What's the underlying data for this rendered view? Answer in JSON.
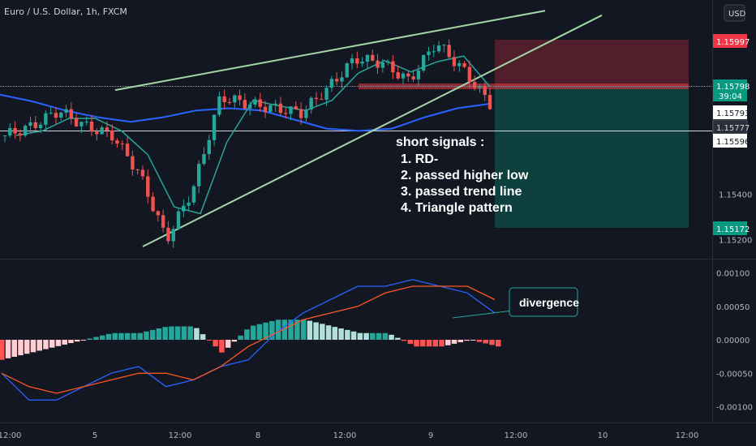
{
  "header": {
    "symbol": "Euro / U.S. Dollar, 1h, FXCM",
    "currency_button": "USD"
  },
  "annotations": {
    "signals_title": "short signals :",
    "signals": [
      "1. RD-",
      "2. passed higher low",
      "3. passed trend line",
      "4. Triangle pattern"
    ],
    "divergence_label": "divergence"
  },
  "price_tags": [
    {
      "text": "1.15997",
      "bg": "#f23645",
      "fg": "#ffffff"
    },
    {
      "text": "1.15798",
      "bg": "#089981",
      "fg": "#ffffff"
    },
    {
      "text": "39:04",
      "bg": "#089981",
      "fg": "#ffffff"
    },
    {
      "text": "1.15793",
      "bg": "#ffffff",
      "fg": "#131722"
    },
    {
      "text": "1.15777",
      "bg": "#2a2e39",
      "fg": "#d1d4dc"
    },
    {
      "text": "1.15596",
      "bg": "#ffffff",
      "fg": "#131722"
    },
    {
      "text": "1.15172",
      "bg": "#089981",
      "fg": "#ffffff"
    }
  ],
  "colors": {
    "background": "#131722",
    "up": "#26a69a",
    "down": "#ef5350",
    "trendline": "#a5d6a7",
    "ma_blue": "#2962ff",
    "ma_teal": "#26a69a",
    "macd": "#2962ff",
    "signal": "#ff5722",
    "hist_up_strong": "#26a69a",
    "hist_up_weak": "#b2dfdb",
    "hist_down_strong": "#ff5252",
    "hist_down_weak": "#ffcdd2",
    "stop_zone": "#f23645",
    "target_zone": "#089981"
  },
  "chart_data": [
    {
      "type": "candlestick",
      "title": "Euro / U.S. Dollar, 1h, FXCM",
      "ylim": [
        1.1512,
        1.1615
      ],
      "y_ticks": [
        "1.15400",
        "1.15200"
      ],
      "x_ticks": [
        "12:00",
        "5",
        "12:00",
        "8",
        "12:00",
        "9",
        "12:00",
        "10",
        "12:00"
      ],
      "ohlc_sampled": [
        [
          1.1574,
          1.1576,
          1.1564,
          1.1566
        ],
        [
          1.1566,
          1.1573,
          1.1561,
          1.157
        ],
        [
          1.157,
          1.158,
          1.1568,
          1.1577
        ],
        [
          1.1577,
          1.1579,
          1.1568,
          1.157
        ],
        [
          1.157,
          1.1574,
          1.1563,
          1.1566
        ],
        [
          1.1566,
          1.157,
          1.1547,
          1.1549
        ],
        [
          1.1549,
          1.1552,
          1.1518,
          1.152
        ],
        [
          1.152,
          1.1546,
          1.1517,
          1.1543
        ],
        [
          1.1543,
          1.1586,
          1.154,
          1.1583
        ],
        [
          1.1583,
          1.1588,
          1.1575,
          1.158
        ],
        [
          1.158,
          1.1586,
          1.1576,
          1.1578
        ],
        [
          1.1578,
          1.1583,
          1.1573,
          1.1576
        ],
        [
          1.1576,
          1.159,
          1.1572,
          1.1587
        ],
        [
          1.1587,
          1.1604,
          1.1585,
          1.16
        ],
        [
          1.16,
          1.1603,
          1.1594,
          1.1598
        ],
        [
          1.1598,
          1.16,
          1.1588,
          1.159
        ],
        [
          1.159,
          1.1611,
          1.1588,
          1.1607
        ],
        [
          1.1607,
          1.1609,
          1.1592,
          1.1595
        ],
        [
          1.1595,
          1.1597,
          1.158,
          1.158
        ]
      ],
      "ma_blue": [
        1.1584,
        1.1581,
        1.1577,
        1.1574,
        1.1572,
        1.1574,
        1.1577,
        1.1578,
        1.1577,
        1.1573,
        1.1569,
        1.1568,
        1.1569,
        1.1574,
        1.1578,
        1.158
      ],
      "trendlines": [
        {
          "name": "upper channel",
          "from": [
            1.1586,
            "Jul 5"
          ],
          "to": [
            1.1621,
            "Jul 9"
          ]
        },
        {
          "name": "lower trendline",
          "from": [
            1.1517,
            "Jul 5"
          ],
          "to": [
            1.1619,
            "Jul 9"
          ]
        }
      ],
      "position": {
        "type": "short",
        "entry": 1.15798,
        "stop": 1.15997,
        "target": 1.15172
      }
    },
    {
      "type": "macd",
      "ylim": [
        -0.0012,
        0.0012
      ],
      "y_ticks": [
        "0.00100",
        "0.00050",
        "0.00000",
        "-0.00050",
        "-0.00100"
      ],
      "macd": [
        -0.0005,
        -0.0009,
        -0.0009,
        -0.0007,
        -0.0005,
        -0.0004,
        -0.0007,
        -0.0006,
        -0.0004,
        -0.0003,
        0.0001,
        0.0004,
        0.0006,
        0.0008,
        0.0008,
        0.0009,
        0.0008,
        0.0007,
        0.0004
      ],
      "signal": [
        -0.0005,
        -0.0007,
        -0.0008,
        -0.0007,
        -0.0006,
        -0.0005,
        -0.0005,
        -0.0006,
        -0.0004,
        -0.0001,
        0.0001,
        0.0003,
        0.0004,
        0.0005,
        0.0007,
        0.0008,
        0.0008,
        0.0008,
        0.0006
      ],
      "histogram": [
        -0.0003,
        -0.0002,
        -0.0001,
        0.0,
        0.0001,
        0.0001,
        0.0002,
        0.0002,
        -0.0002,
        0.0002,
        0.0003,
        0.0003,
        0.0002,
        0.0001,
        0.0001,
        -0.0001,
        -0.0001,
        0.0,
        -0.0001
      ]
    }
  ]
}
